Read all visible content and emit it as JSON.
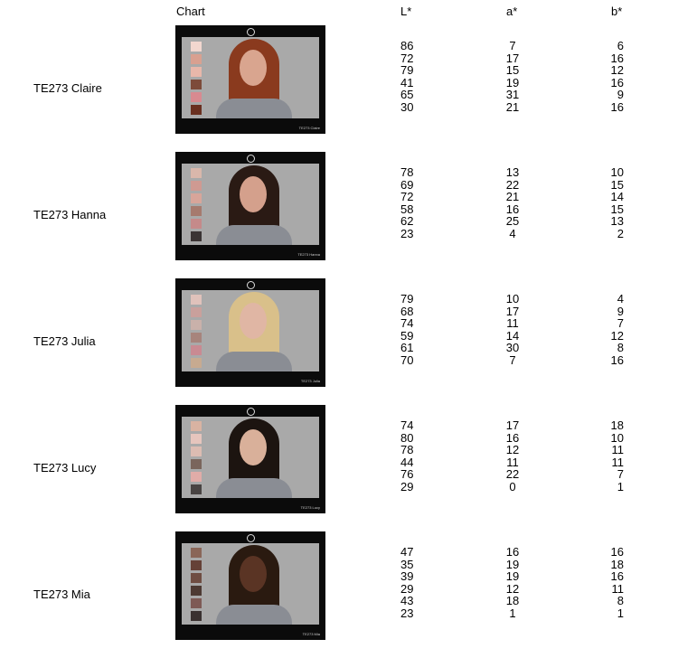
{
  "headers": {
    "name": "",
    "chart": "Chart",
    "L": "L*",
    "a": "a*",
    "b": "b*"
  },
  "rows": [
    {
      "name": "TE273 Claire",
      "chart_label": "TE273 Claire",
      "hair": "#8a3a1e",
      "skin": "#d9a58f",
      "swatches": [
        "#f2d7cf",
        "#d9a090",
        "#e8b7aa",
        "#7d4b3a",
        "#d88a90",
        "#6a3020"
      ],
      "L": [
        86,
        72,
        79,
        41,
        65,
        30
      ],
      "a": [
        7,
        17,
        15,
        19,
        31,
        21
      ],
      "b": [
        6,
        16,
        12,
        16,
        9,
        16
      ]
    },
    {
      "name": "TE273 Hanna",
      "chart_label": "TE273 Hanna",
      "hair": "#2a1a14",
      "skin": "#d4a08c",
      "swatches": [
        "#d9b7ab",
        "#cf9a92",
        "#d8a59a",
        "#a67a6e",
        "#c58a8a",
        "#3b3434"
      ],
      "L": [
        78,
        69,
        72,
        58,
        62,
        23
      ],
      "a": [
        13,
        22,
        21,
        16,
        25,
        4
      ],
      "b": [
        10,
        15,
        14,
        15,
        13,
        2
      ]
    },
    {
      "name": "TE273 Julia",
      "chart_label": "TE273 Julia",
      "hair": "#d9c08a",
      "skin": "#e0b6a4",
      "swatches": [
        "#e0c2bb",
        "#c9a09c",
        "#c9b1aa",
        "#a7847c",
        "#c98a92",
        "#c7aa90"
      ],
      "L": [
        79,
        68,
        74,
        59,
        61,
        70
      ],
      "a": [
        10,
        17,
        11,
        14,
        30,
        7
      ],
      "b": [
        4,
        9,
        7,
        12,
        8,
        16
      ]
    },
    {
      "name": "TE273 Lucy",
      "chart_label": "TE273 Lucy",
      "hair": "#1c1410",
      "skin": "#d9b09a",
      "swatches": [
        "#d9b3a2",
        "#e6c5bd",
        "#dcbcb2",
        "#7a655c",
        "#e0aca8",
        "#494443"
      ],
      "L": [
        74,
        80,
        78,
        44,
        76,
        29
      ],
      "a": [
        17,
        16,
        12,
        11,
        22,
        0
      ],
      "b": [
        18,
        10,
        11,
        11,
        7,
        1
      ]
    },
    {
      "name": "TE273 Mia",
      "chart_label": "TE273 Mia",
      "hair": "#2a1a10",
      "skin": "#5a3424",
      "swatches": [
        "#8a6658",
        "#654137",
        "#6f4d42",
        "#4d3a33",
        "#7e5a55",
        "#3a3130"
      ],
      "L": [
        47,
        35,
        39,
        29,
        43,
        23
      ],
      "a": [
        16,
        19,
        19,
        12,
        18,
        1
      ],
      "b": [
        16,
        18,
        16,
        11,
        8,
        1
      ]
    }
  ]
}
